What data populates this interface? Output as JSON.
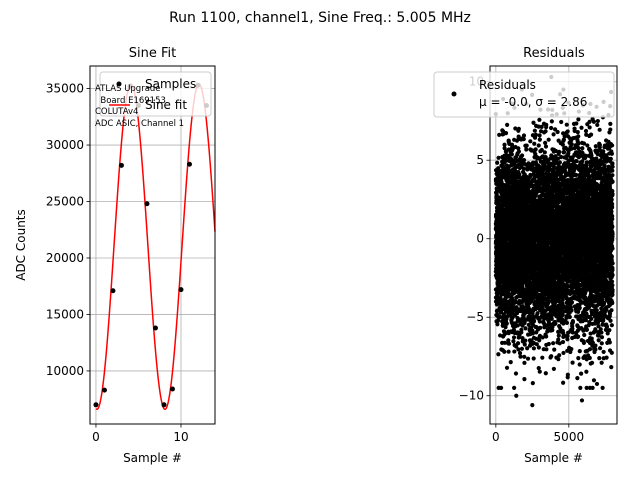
{
  "figure": {
    "suptitle": "Run 1100, channel1, Sine Freq.: 5.005 MHz"
  },
  "chart_data": [
    {
      "type": "scatter",
      "title": "Sine Fit",
      "xlabel": "Sample #",
      "ylabel": "ADC Counts",
      "xlim": [
        -0.7,
        14.0
      ],
      "ylim": [
        5300,
        37000
      ],
      "xticks": [
        0,
        10
      ],
      "yticks": [
        10000,
        15000,
        20000,
        25000,
        30000,
        35000
      ],
      "grid": true,
      "legend_position": "top-right",
      "series": [
        {
          "name": "Samples",
          "kind": "points",
          "color": "#000000",
          "x": [
            0,
            1,
            2,
            3,
            4,
            5,
            6,
            7,
            8,
            9,
            10,
            11,
            12,
            13
          ],
          "y": [
            7000,
            8300,
            17100,
            28200,
            35200,
            33500,
            24800,
            13800,
            7000,
            8400,
            17200,
            28300,
            35300,
            33500
          ]
        },
        {
          "name": "Sine fit",
          "kind": "line",
          "color": "#ff0000",
          "model": {
            "offset": 21000,
            "amplitude": 14400,
            "period": 8.0,
            "phase": 4.62
          },
          "x_range": [
            0,
            14
          ]
        }
      ],
      "annotation": [
        "ATLAS Upgrade",
        "  Board E169153",
        "COLUTAv4",
        "ADC ASIC, Channel 1"
      ]
    },
    {
      "type": "scatter",
      "title": "Residuals",
      "xlabel": "Sample #",
      "ylabel": "",
      "xlim": [
        -400,
        8300
      ],
      "ylim": [
        -11.8,
        11.0
      ],
      "xticks": [
        0,
        5000
      ],
      "yticks": [
        -10,
        -5,
        0,
        5,
        10
      ],
      "grid": true,
      "legend_position": "top-right",
      "series": [
        {
          "name": "Residuals",
          "color": "#000000",
          "n_points": 8000,
          "mean": -0.0,
          "sigma": 2.86,
          "outliers": [
            {
              "x": 1400,
              "y": -10.0
            },
            {
              "x": 2500,
              "y": -10.6
            },
            {
              "x": 5900,
              "y": -10.3
            },
            {
              "x": 3800,
              "y": 10.3
            },
            {
              "x": 2100,
              "y": 8.6
            },
            {
              "x": 4400,
              "y": 9.2
            },
            {
              "x": 500,
              "y": 8.9
            },
            {
              "x": 6900,
              "y": 8.4
            }
          ]
        }
      ],
      "legend_stats": "μ = -0.0, σ = 2.86"
    }
  ]
}
